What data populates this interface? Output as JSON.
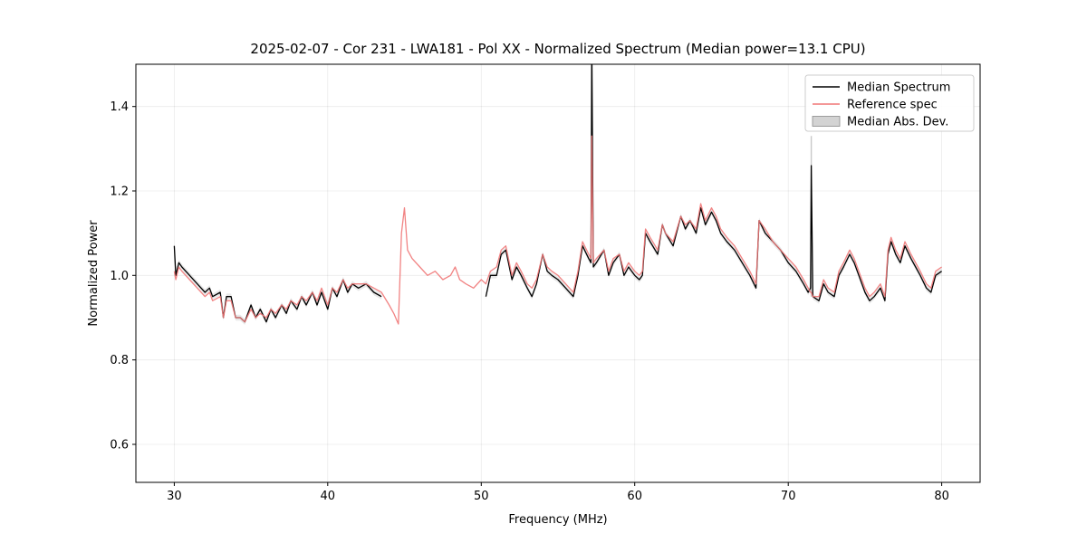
{
  "page": {
    "background": "#ffffff"
  },
  "chart_data": {
    "type": "line",
    "title": "2025-02-07 - Cor 231 - LWA181 - Pol XX - Normalized Spectrum (Median power=13.1 CPU)",
    "xlabel": "Frequency (MHz)",
    "ylabel": "Normalized Power",
    "xlim": [
      27.5,
      82.5
    ],
    "ylim": [
      0.51,
      1.5
    ],
    "xticks": [
      30,
      40,
      50,
      60,
      70,
      80
    ],
    "xticklabels": [
      "30",
      "40",
      "50",
      "60",
      "70",
      "80"
    ],
    "yticks": [
      0.6,
      0.8,
      1.0,
      1.2,
      1.4
    ],
    "yticklabels": [
      "0.6",
      "0.8",
      "1.0",
      "1.2",
      "1.4"
    ],
    "grid": true,
    "legend": {
      "location": "upper right",
      "entries": [
        {
          "label": "Median Spectrum",
          "type": "line",
          "color": "#000000"
        },
        {
          "label": "Reference spec",
          "type": "line",
          "color": "#f07575"
        },
        {
          "label": "Median Abs. Dev.",
          "type": "patch",
          "fill": "#d3d3d3",
          "edge": "#8a8a8a"
        }
      ]
    },
    "x": [
      30.0,
      30.1,
      30.3,
      30.5,
      31.0,
      31.5,
      32.0,
      32.3,
      32.5,
      33.0,
      33.2,
      33.4,
      33.7,
      34.0,
      34.3,
      34.6,
      35.0,
      35.3,
      35.6,
      36.0,
      36.3,
      36.6,
      37.0,
      37.3,
      37.6,
      38.0,
      38.3,
      38.6,
      39.0,
      39.3,
      39.6,
      40.0,
      40.3,
      40.6,
      41.0,
      41.3,
      41.6,
      42.0,
      42.5,
      43.0,
      43.5,
      44.0,
      44.3,
      44.6,
      44.8,
      45.0,
      45.2,
      45.5,
      46.0,
      46.5,
      47.0,
      47.5,
      48.0,
      48.3,
      48.6,
      49.0,
      49.5,
      50.0,
      50.3,
      50.6,
      51.0,
      51.3,
      51.6,
      52.0,
      52.3,
      52.6,
      53.0,
      53.3,
      53.6,
      54.0,
      54.3,
      54.6,
      55.0,
      55.5,
      56.0,
      56.3,
      56.6,
      57.0,
      57.15,
      57.2,
      57.3,
      57.5,
      58.0,
      58.3,
      58.6,
      59.0,
      59.3,
      59.6,
      60.0,
      60.3,
      60.5,
      60.7,
      61.0,
      61.5,
      61.8,
      62.0,
      62.5,
      63.0,
      63.3,
      63.6,
      64.0,
      64.3,
      64.6,
      65.0,
      65.3,
      65.6,
      66.0,
      66.5,
      67.0,
      67.5,
      67.9,
      68.1,
      68.5,
      69.0,
      69.5,
      70.0,
      70.5,
      71.0,
      71.3,
      71.45,
      71.5,
      71.6,
      72.0,
      72.3,
      72.6,
      73.0,
      73.3,
      73.6,
      74.0,
      74.3,
      74.6,
      75.0,
      75.3,
      75.6,
      76.0,
      76.3,
      76.5,
      76.7,
      77.0,
      77.3,
      77.6,
      78.0,
      78.3,
      78.6,
      79.0,
      79.3,
      79.6,
      80.0
    ],
    "series": [
      {
        "name": "Median Spectrum",
        "color": "#000000",
        "values": [
          1.07,
          1.0,
          1.03,
          1.02,
          1.0,
          0.98,
          0.96,
          0.97,
          0.95,
          0.96,
          0.9,
          0.95,
          0.95,
          0.9,
          0.9,
          0.89,
          0.93,
          0.9,
          0.92,
          0.89,
          0.92,
          0.9,
          0.93,
          0.91,
          0.94,
          0.92,
          0.95,
          0.93,
          0.96,
          0.93,
          0.96,
          0.92,
          0.97,
          0.95,
          0.99,
          0.96,
          0.98,
          0.97,
          0.98,
          0.96,
          0.95,
          null,
          null,
          null,
          null,
          null,
          null,
          null,
          null,
          null,
          null,
          null,
          null,
          null,
          null,
          null,
          null,
          null,
          0.95,
          1.0,
          1.0,
          1.05,
          1.06,
          0.99,
          1.02,
          1.0,
          0.97,
          0.95,
          0.98,
          1.05,
          1.01,
          1.0,
          0.99,
          0.97,
          0.95,
          1.0,
          1.07,
          1.04,
          1.03,
          1.55,
          1.02,
          1.03,
          1.06,
          1.0,
          1.03,
          1.05,
          1.0,
          1.02,
          1.0,
          0.99,
          1.0,
          1.1,
          1.08,
          1.05,
          1.12,
          1.1,
          1.07,
          1.14,
          1.11,
          1.13,
          1.1,
          1.16,
          1.12,
          1.15,
          1.13,
          1.1,
          1.08,
          1.06,
          1.03,
          1.0,
          0.97,
          1.13,
          1.1,
          1.08,
          1.06,
          1.03,
          1.01,
          0.98,
          0.96,
          0.97,
          1.26,
          0.95,
          0.94,
          0.98,
          0.96,
          0.95,
          1.0,
          1.02,
          1.05,
          1.03,
          1.0,
          0.96,
          0.94,
          0.95,
          0.97,
          0.94,
          1.05,
          1.08,
          1.05,
          1.03,
          1.07,
          1.04,
          1.02,
          1.0,
          0.97,
          0.96,
          1.0,
          1.01
        ]
      },
      {
        "name": "Reference spec",
        "color": "#f07575",
        "values": [
          1.01,
          0.99,
          1.02,
          1.01,
          0.99,
          0.97,
          0.95,
          0.96,
          0.94,
          0.95,
          0.9,
          0.94,
          0.94,
          0.9,
          0.9,
          0.89,
          0.92,
          0.9,
          0.91,
          0.9,
          0.92,
          0.91,
          0.93,
          0.92,
          0.94,
          0.93,
          0.95,
          0.94,
          0.96,
          0.94,
          0.97,
          0.93,
          0.97,
          0.96,
          0.99,
          0.97,
          0.98,
          0.98,
          0.98,
          0.97,
          0.96,
          0.93,
          0.91,
          0.885,
          1.1,
          1.16,
          1.06,
          1.04,
          1.02,
          1.0,
          1.01,
          0.99,
          1.0,
          1.02,
          0.99,
          0.98,
          0.97,
          0.99,
          0.98,
          1.01,
          1.02,
          1.06,
          1.07,
          1.0,
          1.03,
          1.01,
          0.98,
          0.97,
          0.99,
          1.05,
          1.02,
          1.01,
          1.0,
          0.98,
          0.96,
          1.01,
          1.08,
          1.05,
          1.04,
          1.33,
          1.03,
          1.04,
          1.06,
          1.01,
          1.04,
          1.05,
          1.01,
          1.03,
          1.01,
          1.0,
          1.01,
          1.11,
          1.09,
          1.06,
          1.12,
          1.1,
          1.08,
          1.14,
          1.12,
          1.13,
          1.11,
          1.17,
          1.13,
          1.16,
          1.14,
          1.11,
          1.09,
          1.07,
          1.04,
          1.01,
          0.98,
          1.13,
          1.11,
          1.08,
          1.06,
          1.04,
          1.02,
          0.99,
          0.97,
          0.96,
          0.96,
          0.95,
          0.95,
          0.99,
          0.97,
          0.96,
          1.01,
          1.03,
          1.06,
          1.04,
          1.01,
          0.97,
          0.95,
          0.96,
          0.98,
          0.95,
          1.06,
          1.09,
          1.06,
          1.04,
          1.08,
          1.05,
          1.03,
          1.01,
          0.98,
          0.97,
          1.01,
          1.02
        ]
      }
    ],
    "mad": {
      "name": "Median Abs. Dev.",
      "band_color": "#d9d9d9",
      "band_halfwidth": 0.007,
      "spike": {
        "x": 71.5,
        "y0": 0.95,
        "y1": 1.33,
        "color": "#c8c8c8"
      }
    }
  }
}
